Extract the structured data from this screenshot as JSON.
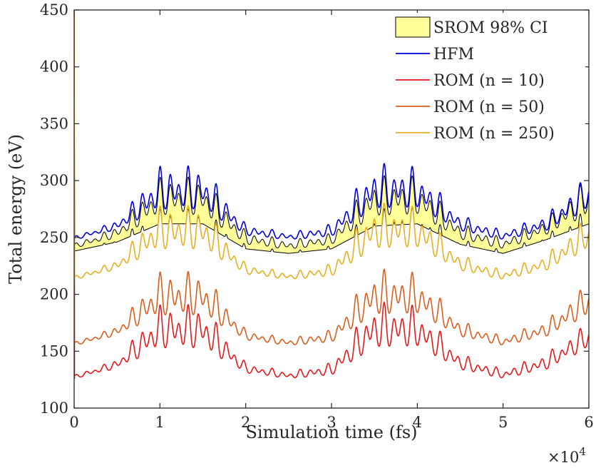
{
  "chart_data": {
    "type": "line",
    "title": "",
    "xlabel": "Simulation time (fs)",
    "ylabel": "Total energy (eV)",
    "x_multiplier_base": "×10",
    "x_multiplier_exp": "4",
    "xlim": [
      0,
      6
    ],
    "ylim": [
      100,
      450
    ],
    "x_ticks": [
      0,
      1,
      2,
      3,
      4,
      5,
      6
    ],
    "y_ticks": [
      100,
      150,
      200,
      250,
      300,
      350,
      400,
      450
    ],
    "grid": false,
    "legend_position": "top-right",
    "series": [
      {
        "name": "SROM 98% CI",
        "kind": "band",
        "fill_color": "#ffff99",
        "edge_color": "#000000",
        "lower_envelope": [
          [
            0,
            238
          ],
          [
            0.5,
            246
          ],
          [
            1.0,
            262
          ],
          [
            1.5,
            262
          ],
          [
            2.0,
            240
          ],
          [
            2.5,
            236
          ],
          [
            3.0,
            240
          ],
          [
            3.5,
            260
          ],
          [
            4.0,
            262
          ],
          [
            4.5,
            244
          ],
          [
            5.0,
            236
          ],
          [
            5.5,
            248
          ],
          [
            6.0,
            262
          ]
        ],
        "upper_envelope": [
          [
            0,
            242
          ],
          [
            0.5,
            256
          ],
          [
            1.0,
            296
          ],
          [
            1.5,
            296
          ],
          [
            2.0,
            252
          ],
          [
            2.5,
            244
          ],
          [
            3.0,
            250
          ],
          [
            3.5,
            296
          ],
          [
            4.0,
            296
          ],
          [
            4.5,
            258
          ],
          [
            5.0,
            246
          ],
          [
            5.5,
            262
          ],
          [
            6.0,
            296
          ]
        ]
      },
      {
        "name": "HFM",
        "kind": "line",
        "color": "#0000dd",
        "envelope_low": [
          [
            0,
            248
          ],
          [
            0.5,
            257
          ],
          [
            1.0,
            275
          ],
          [
            1.5,
            275
          ],
          [
            2.0,
            252
          ],
          [
            2.5,
            248
          ],
          [
            3.0,
            251
          ],
          [
            3.5,
            275
          ],
          [
            4.0,
            276
          ],
          [
            4.5,
            256
          ],
          [
            5.0,
            248
          ],
          [
            5.5,
            256
          ],
          [
            6.0,
            275
          ]
        ],
        "envelope_high": [
          [
            0,
            251
          ],
          [
            0.5,
            265
          ],
          [
            1.0,
            314
          ],
          [
            1.5,
            314
          ],
          [
            2.0,
            262
          ],
          [
            2.5,
            254
          ],
          [
            3.0,
            262
          ],
          [
            3.5,
            316
          ],
          [
            4.0,
            312
          ],
          [
            4.5,
            270
          ],
          [
            5.0,
            256
          ],
          [
            5.5,
            270
          ],
          [
            6.0,
            306
          ]
        ]
      },
      {
        "name": "ROM (n = 10)",
        "kind": "line",
        "color": "#e41a1c",
        "envelope_low": [
          [
            0,
            126
          ],
          [
            0.5,
            135
          ],
          [
            1.0,
            153
          ],
          [
            1.5,
            153
          ],
          [
            2.0,
            131
          ],
          [
            2.5,
            126
          ],
          [
            3.0,
            129
          ],
          [
            3.5,
            153
          ],
          [
            4.0,
            154
          ],
          [
            4.5,
            134
          ],
          [
            5.0,
            126
          ],
          [
            5.5,
            134
          ],
          [
            6.0,
            153
          ]
        ],
        "envelope_high": [
          [
            0,
            129
          ],
          [
            0.5,
            143
          ],
          [
            1.0,
            192
          ],
          [
            1.5,
            192
          ],
          [
            2.0,
            140
          ],
          [
            2.5,
            132
          ],
          [
            3.0,
            140
          ],
          [
            3.5,
            194
          ],
          [
            4.0,
            190
          ],
          [
            4.5,
            148
          ],
          [
            5.0,
            134
          ],
          [
            5.5,
            148
          ],
          [
            6.0,
            176
          ]
        ]
      },
      {
        "name": "ROM (n = 50)",
        "kind": "line",
        "color": "#d95f1e",
        "envelope_low": [
          [
            0,
            155
          ],
          [
            0.5,
            164
          ],
          [
            1.0,
            182
          ],
          [
            1.5,
            182
          ],
          [
            2.0,
            160
          ],
          [
            2.5,
            155
          ],
          [
            3.0,
            158
          ],
          [
            3.5,
            182
          ],
          [
            4.0,
            183
          ],
          [
            4.5,
            163
          ],
          [
            5.0,
            155
          ],
          [
            5.5,
            163
          ],
          [
            6.0,
            182
          ]
        ],
        "envelope_high": [
          [
            0,
            158
          ],
          [
            0.5,
            172
          ],
          [
            1.0,
            221
          ],
          [
            1.5,
            221
          ],
          [
            2.0,
            169
          ],
          [
            2.5,
            161
          ],
          [
            3.0,
            169
          ],
          [
            3.5,
            223
          ],
          [
            4.0,
            219
          ],
          [
            4.5,
            177
          ],
          [
            5.0,
            163
          ],
          [
            5.5,
            177
          ],
          [
            6.0,
            211
          ]
        ]
      },
      {
        "name": "ROM (n = 250)",
        "kind": "line",
        "color": "#e6b020",
        "envelope_low": [
          [
            0,
            213
          ],
          [
            0.5,
            222
          ],
          [
            1.0,
            240
          ],
          [
            1.5,
            240
          ],
          [
            2.0,
            218
          ],
          [
            2.5,
            213
          ],
          [
            3.0,
            216
          ],
          [
            3.5,
            240
          ],
          [
            4.0,
            241
          ],
          [
            4.5,
            221
          ],
          [
            5.0,
            213
          ],
          [
            5.5,
            221
          ],
          [
            6.0,
            240
          ]
        ],
        "envelope_high": [
          [
            0,
            216
          ],
          [
            0.5,
            230
          ],
          [
            1.0,
            279
          ],
          [
            1.5,
            279
          ],
          [
            2.0,
            227
          ],
          [
            2.5,
            219
          ],
          [
            3.0,
            227
          ],
          [
            3.5,
            281
          ],
          [
            4.0,
            277
          ],
          [
            4.5,
            235
          ],
          [
            5.0,
            221
          ],
          [
            5.5,
            235
          ],
          [
            6.0,
            270
          ]
        ]
      }
    ]
  }
}
